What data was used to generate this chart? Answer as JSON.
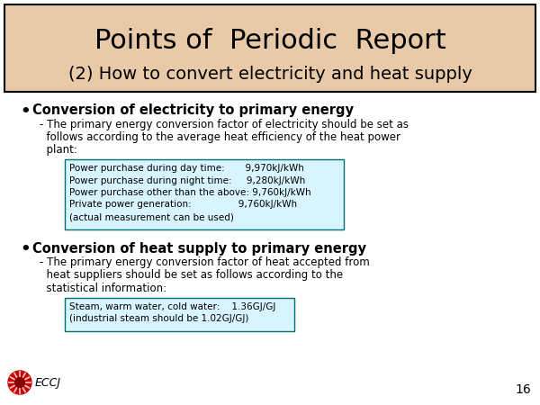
{
  "title_line1": "Points of  Periodic  Report",
  "title_line2": "(2) How to convert electricity and heat supply",
  "title_bg_color": "#E8C9A8",
  "title_border_color": "#000000",
  "bullet1_header": "Conversion of electricity to primary energy",
  "sub1_lines": [
    "- The primary energy conversion factor of electricity should be set as",
    "  follows according to the average heat efficiency of the heat power",
    "  plant:"
  ],
  "box1_lines": [
    "Power purchase during day time:       9,970kJ/kWh",
    "Power purchase during night time:     9,280kJ/kWh",
    "Power purchase other than the above: 9,760kJ/kWh",
    "Private power generation:                9,760kJ/kWh",
    "(actual measurement can be used)"
  ],
  "box1_bg": "#D8F4FF",
  "box1_border": "#007070",
  "bullet2_header": "Conversion of heat supply to primary energy",
  "sub2_lines": [
    "- The primary energy conversion factor of heat accepted from",
    "  heat suppliers should be set as follows according to the",
    "  statistical information:"
  ],
  "box2_lines": [
    "Steam, warm water, cold water:    1.36GJ/GJ",
    "(industrial steam should be 1.02GJ/GJ)"
  ],
  "box2_bg": "#D8F4FF",
  "box2_border": "#007070",
  "page_number": "16",
  "eccj_text": "ECCJ",
  "bg_color": "#FFFFFF"
}
